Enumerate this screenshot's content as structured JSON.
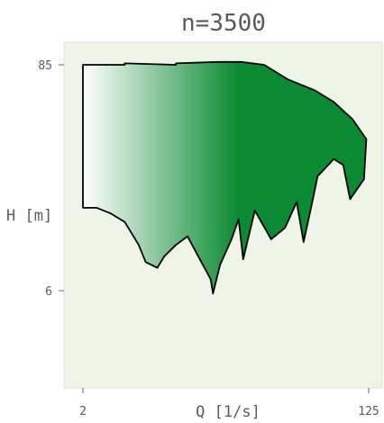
{
  "chart_data": {
    "type": "area",
    "title": "n=3500",
    "xlabel": "Q [1/s]",
    "ylabel": "H [m]",
    "x_ticks": [
      "2",
      "125"
    ],
    "y_ticks": [
      "85",
      "6"
    ],
    "xlim": [
      2,
      125
    ],
    "ylim": [
      6,
      85
    ],
    "series": [
      {
        "fill_gradient": [
          "#ffffff",
          "#0a8a32"
        ],
        "outline": [
          [
            2,
            85
          ],
          [
            20,
            85
          ],
          [
            20,
            85.5
          ],
          [
            42,
            85
          ],
          [
            42,
            85.5
          ],
          [
            60,
            86
          ],
          [
            70,
            86
          ],
          [
            80,
            85
          ],
          [
            90,
            80
          ],
          [
            102,
            76
          ],
          [
            110,
            72
          ],
          [
            118,
            66
          ],
          [
            124,
            59
          ],
          [
            123,
            45
          ],
          [
            117,
            38
          ],
          [
            114,
            50
          ],
          [
            110,
            52
          ],
          [
            103,
            46
          ],
          [
            101,
            38
          ],
          [
            97,
            23
          ],
          [
            94,
            37
          ],
          [
            89,
            28
          ],
          [
            83,
            24
          ],
          [
            76,
            34
          ],
          [
            71,
            17
          ],
          [
            69,
            31
          ],
          [
            66,
            24
          ],
          [
            61,
            15
          ],
          [
            58,
            5
          ],
          [
            57,
            10
          ],
          [
            53,
            16
          ],
          [
            47,
            25
          ],
          [
            42,
            22
          ],
          [
            37,
            18
          ],
          [
            34,
            14
          ],
          [
            29,
            16
          ],
          [
            26,
            22
          ],
          [
            20,
            30
          ],
          [
            14,
            33
          ],
          [
            8,
            35
          ],
          [
            2,
            35
          ],
          [
            2,
            85
          ]
        ]
      }
    ],
    "grid": false,
    "background": "#eef5e8",
    "outline_color": "#000000"
  }
}
